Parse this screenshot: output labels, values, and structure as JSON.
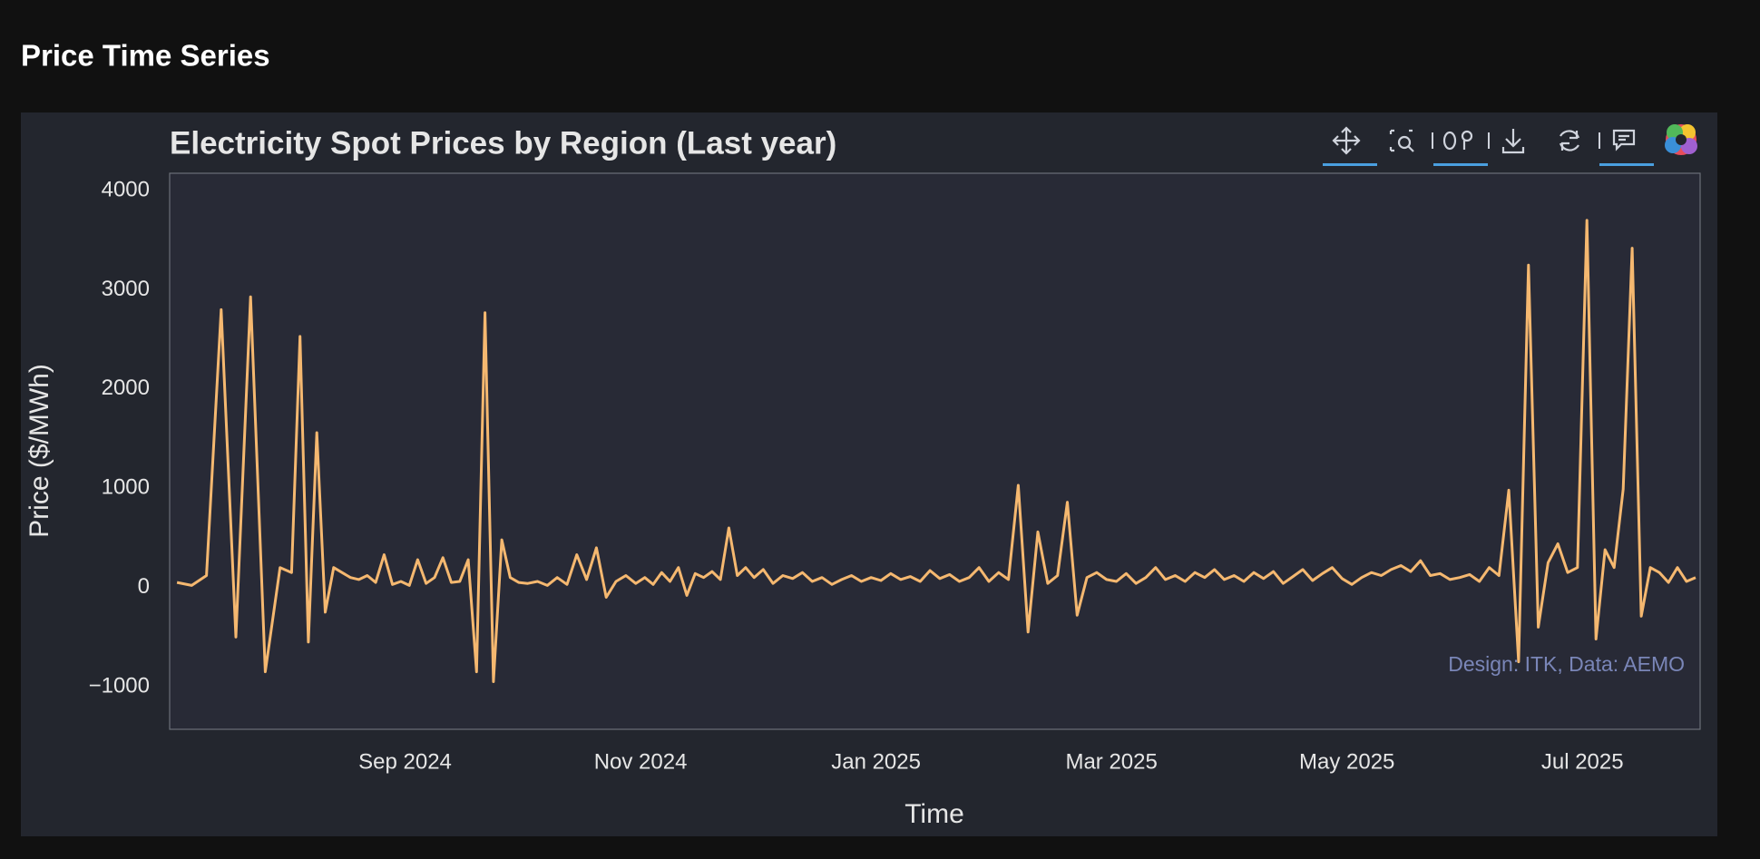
{
  "header": {
    "title": "Price Time Series"
  },
  "chart_data": {
    "type": "line",
    "title": "Electricity Spot Prices by Region (Last year)",
    "x_label": "Time",
    "y_label": "Price ($/MWh)",
    "annotation": "Design: ITK, Data: AEMO",
    "x": [
      "2024-07",
      "2024-07",
      "2024-07",
      "2024-07",
      "2024-07",
      "2024-07",
      "2024-07",
      "2024-07",
      "2024-08",
      "2024-08",
      "2024-08",
      "2024-08",
      "2024-08",
      "2024-08",
      "2024-08",
      "2024-08",
      "2024-08",
      "2024-08",
      "2024-08",
      "2024-08",
      "2024-08",
      "2024-08",
      "2024-09",
      "2024-09",
      "2024-09",
      "2024-09",
      "2024-09",
      "2024-09",
      "2024-09",
      "2024-09",
      "2024-09",
      "2024-09",
      "2024-09",
      "2024-09",
      "2024-09",
      "2024-09",
      "2024-10",
      "2024-10",
      "2024-10",
      "2024-10",
      "2024-10",
      "2024-10",
      "2024-10",
      "2024-10",
      "2024-10",
      "2024-10",
      "2024-10",
      "2024-10",
      "2024-11",
      "2024-11",
      "2024-11",
      "2024-11",
      "2024-11",
      "2024-11",
      "2024-11",
      "2024-11",
      "2024-11",
      "2024-11",
      "2024-11",
      "2024-11",
      "2024-11",
      "2024-11",
      "2024-12",
      "2024-12",
      "2024-12",
      "2024-12",
      "2024-12",
      "2024-12",
      "2024-12",
      "2024-12",
      "2024-12",
      "2024-12",
      "2024-12",
      "2024-12",
      "2025-01",
      "2025-01",
      "2025-01",
      "2025-01",
      "2025-01",
      "2025-01",
      "2025-01",
      "2025-01",
      "2025-01",
      "2025-01",
      "2025-01",
      "2025-01",
      "2025-02",
      "2025-02",
      "2025-02",
      "2025-02",
      "2025-02",
      "2025-02",
      "2025-02",
      "2025-02",
      "2025-02",
      "2025-02",
      "2025-02",
      "2025-02",
      "2025-03",
      "2025-03",
      "2025-03",
      "2025-03",
      "2025-03",
      "2025-03",
      "2025-03",
      "2025-03",
      "2025-03",
      "2025-03",
      "2025-03",
      "2025-03",
      "2025-04",
      "2025-04",
      "2025-04",
      "2025-04",
      "2025-04",
      "2025-04",
      "2025-04",
      "2025-04",
      "2025-04",
      "2025-04",
      "2025-04",
      "2025-04",
      "2025-05",
      "2025-05",
      "2025-05",
      "2025-05",
      "2025-05",
      "2025-05",
      "2025-05",
      "2025-05",
      "2025-05",
      "2025-05",
      "2025-05",
      "2025-05",
      "2025-06",
      "2025-06",
      "2025-06",
      "2025-06",
      "2025-06",
      "2025-06",
      "2025-06",
      "2025-06",
      "2025-06",
      "2025-06",
      "2025-06",
      "2025-06",
      "2025-07",
      "2025-07",
      "2025-07",
      "2025-07",
      "2025-07",
      "2025-07",
      "2025-07",
      "2025-07",
      "2025-07",
      "2025-07",
      "2025-07",
      "2025-07",
      "2025-07"
    ],
    "series": [
      {
        "name": "Price",
        "color": "#f5b870",
        "values": [
          50,
          20,
          120,
          2800,
          -500,
          2930,
          -850,
          200,
          150,
          2530,
          -550,
          1560,
          -250,
          200,
          150,
          100,
          80,
          120,
          50,
          330,
          30,
          60,
          20,
          280,
          40,
          100,
          300,
          50,
          60,
          280,
          -850,
          2770,
          -950,
          480,
          100,
          50,
          40,
          60,
          20,
          100,
          30,
          330,
          80,
          400,
          -100,
          60,
          120,
          40,
          100,
          30,
          150,
          60,
          200,
          -80,
          140,
          100,
          160,
          80,
          600,
          120,
          200,
          100,
          180,
          40,
          120,
          90,
          150,
          60,
          100,
          30,
          80,
          120,
          60,
          100,
          70,
          140,
          80,
          110,
          60,
          170,
          90,
          130,
          60,
          100,
          200,
          60,
          150,
          80,
          1030,
          -450,
          560,
          40,
          120,
          860,
          -280,
          100,
          150,
          80,
          60,
          140,
          40,
          100,
          200,
          80,
          120,
          60,
          150,
          100,
          180,
          80,
          120,
          60,
          150,
          90,
          160,
          40,
          110,
          180,
          70,
          140,
          200,
          90,
          30,
          100,
          150,
          120,
          180,
          220,
          160,
          270,
          120,
          140,
          80,
          100,
          130,
          60,
          200,
          120,
          980,
          -750,
          3250,
          -400,
          250,
          440,
          150,
          200,
          3700,
          -520,
          380,
          200,
          990,
          3420,
          -290,
          200,
          150,
          50,
          200,
          60,
          100
        ]
      }
    ],
    "xlim": [
      "2024-07",
      "2025-08"
    ],
    "xticks": [
      {
        "value": "2024-09",
        "label": "Sep 2024"
      },
      {
        "value": "2024-11",
        "label": "Nov 2024"
      },
      {
        "value": "2025-01",
        "label": "Jan 2025"
      },
      {
        "value": "2025-03",
        "label": "Mar 2025"
      },
      {
        "value": "2025-05",
        "label": "May 2025"
      },
      {
        "value": "2025-07",
        "label": "Jul 2025"
      }
    ],
    "ylim": [
      -1430,
      4175
    ],
    "yticks": [
      4000,
      3000,
      2000,
      1000,
      0,
      {
        "value": -1000,
        "label": "−1000"
      }
    ],
    "grid": false
  }
}
